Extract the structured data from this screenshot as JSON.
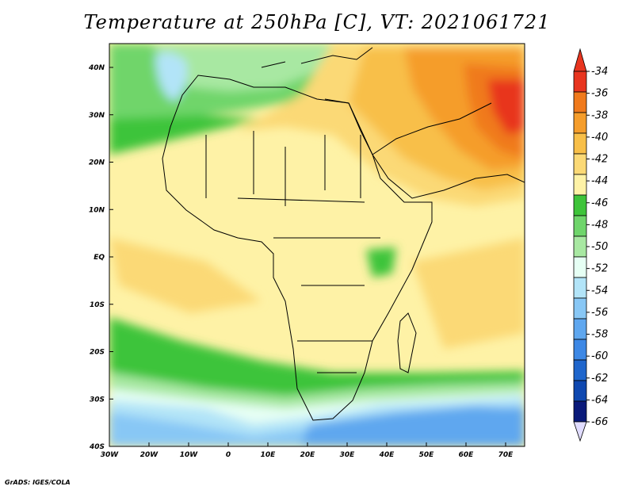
{
  "title": "Temperature at 250hPa [C], VT: 2021061721",
  "credit": "GrADS: IGES/COLA",
  "lat_ticks": [
    "40N",
    "30N",
    "20N",
    "10N",
    "EQ",
    "10S",
    "20S",
    "30S",
    "40S"
  ],
  "lon_ticks": [
    "30W",
    "20W",
    "10W",
    "0",
    "10E",
    "20E",
    "30E",
    "40E",
    "50E",
    "60E",
    "70E"
  ],
  "colorbar": {
    "labels": [
      "-34",
      "-36",
      "-38",
      "-40",
      "-42",
      "-44",
      "-46",
      "-48",
      "-50",
      "-52",
      "-54",
      "-56",
      "-58",
      "-60",
      "-62",
      "-64",
      "-66"
    ],
    "colors": [
      "#e8351f",
      "#f07a1c",
      "#f59d2b",
      "#f8bf48",
      "#fbd976",
      "#fef2a6",
      "#3ec43a",
      "#6fd56b",
      "#a8e8a2",
      "#e6fff4",
      "#b2e4f8",
      "#88c7f5",
      "#5fa7ef",
      "#3d88e5",
      "#1f66cc",
      "#0f48b0",
      "#0a1a7a"
    ]
  }
}
